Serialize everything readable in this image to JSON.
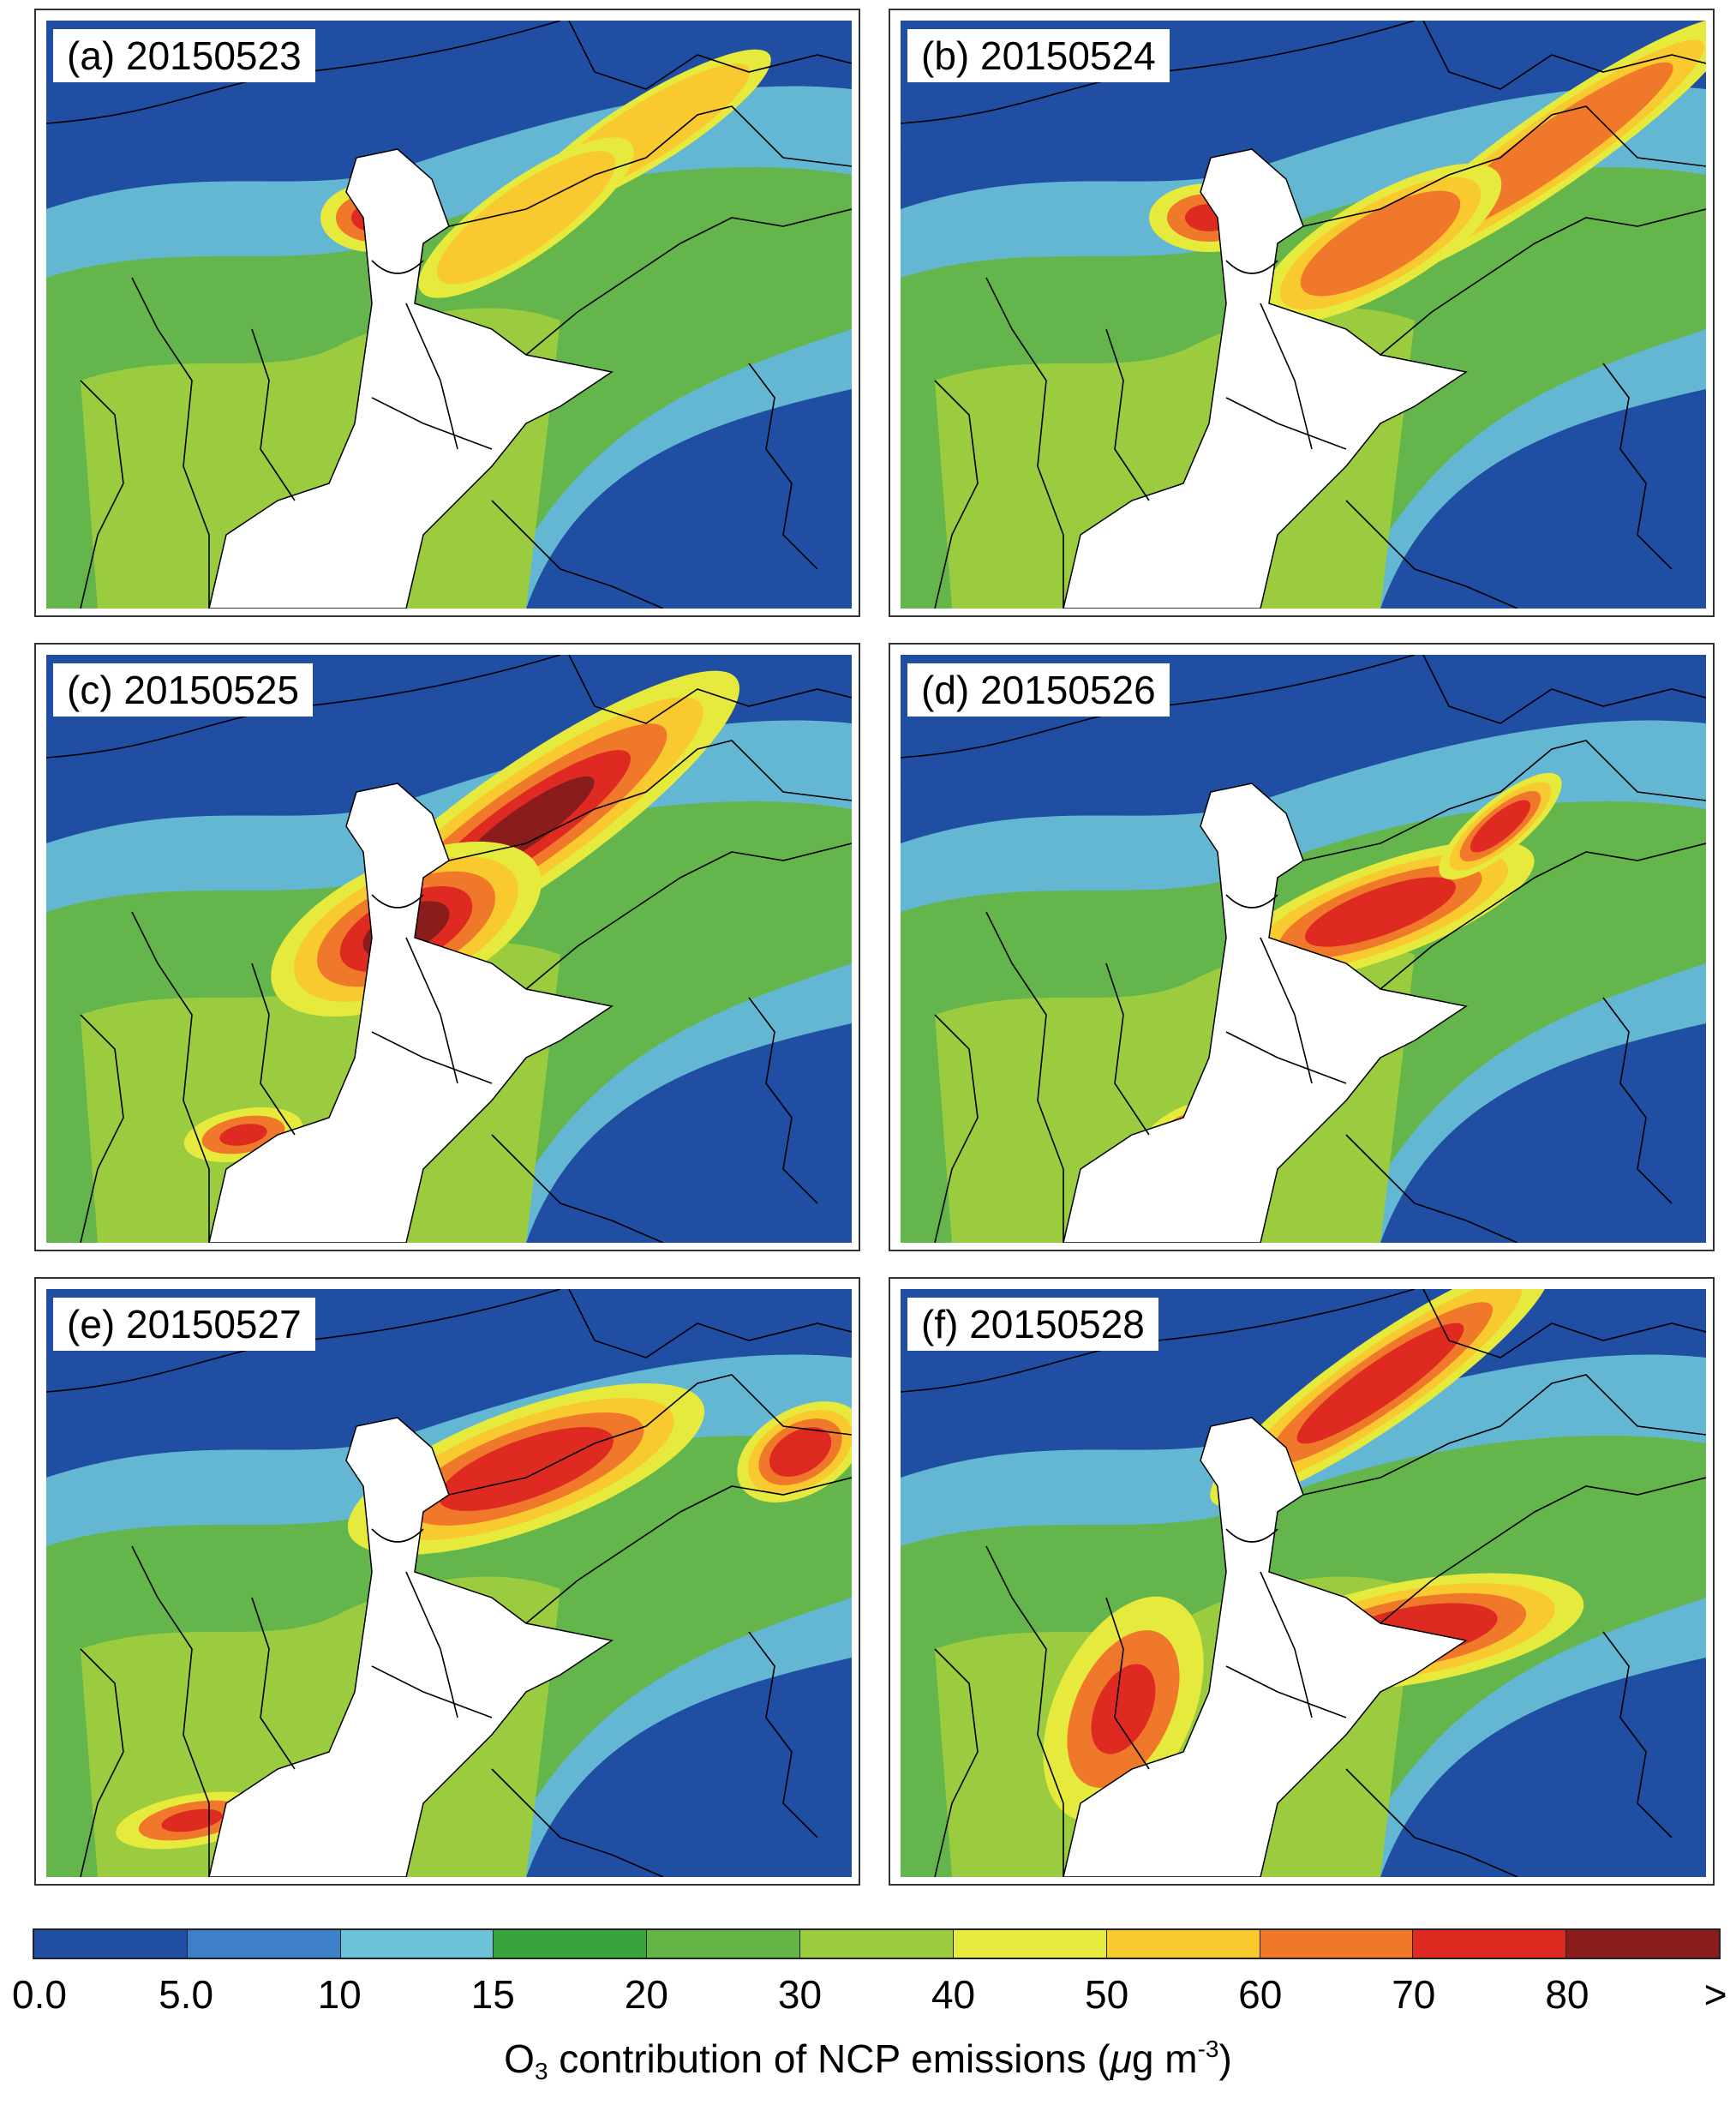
{
  "panels": [
    {
      "id": "a",
      "label": "(a) 20150523"
    },
    {
      "id": "b",
      "label": "(b) 20150524"
    },
    {
      "id": "c",
      "label": "(c) 20150525"
    },
    {
      "id": "d",
      "label": "(d) 20150526"
    },
    {
      "id": "e",
      "label": "(e) 20150527"
    },
    {
      "id": "f",
      "label": "(f) 20150528"
    }
  ],
  "colorbar": {
    "colors": [
      "#1f4ea3",
      "#3d7fc8",
      "#6cc3d8",
      "#3aa33c",
      "#64b545",
      "#9bcc3f",
      "#e6ea3c",
      "#f9c930",
      "#f0782a",
      "#de2a20",
      "#8b1c1c"
    ],
    "ticks": [
      "0.0",
      "5.0",
      "10",
      "15",
      "20",
      "30",
      "40",
      "50",
      "60",
      "70",
      "80",
      ">"
    ],
    "title_main": "O",
    "title_sub": "3",
    "title_mid": " contribution of NCP emissions (",
    "title_mu": "μ",
    "title_unit": "g m",
    "title_sup": "-3",
    "title_end": ")"
  }
}
